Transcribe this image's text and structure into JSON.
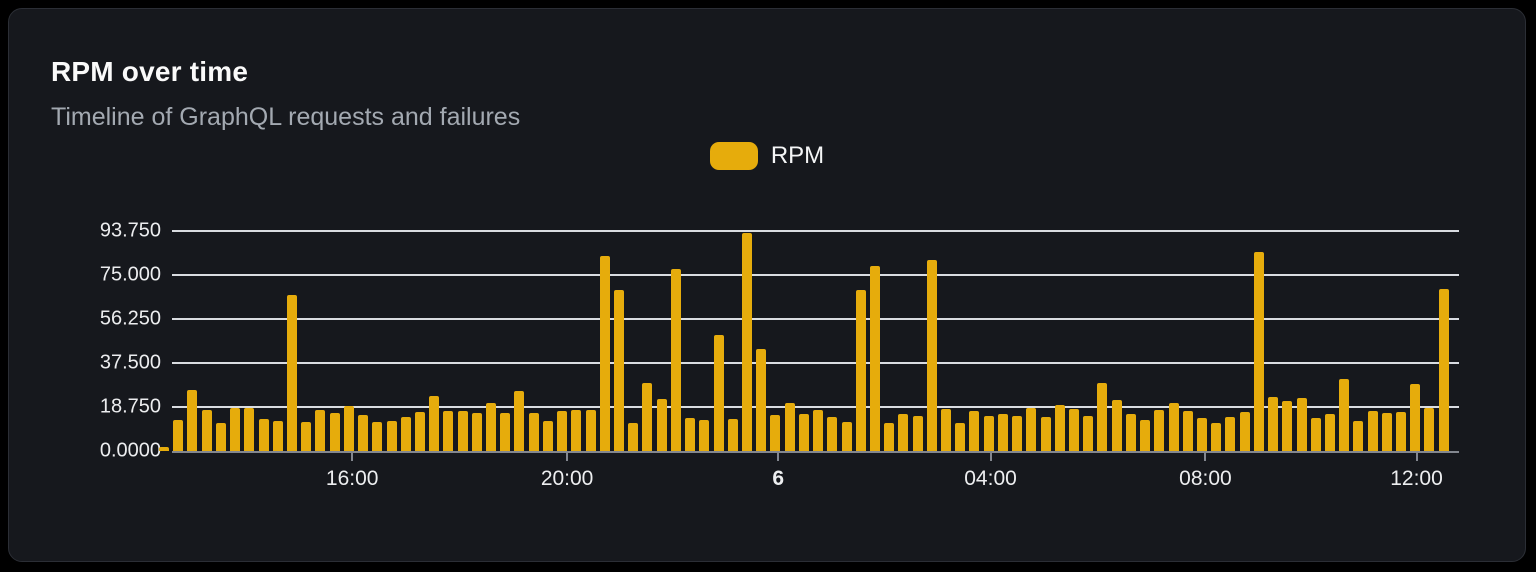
{
  "card": {
    "title": "RPM over time",
    "subtitle": "Timeline of GraphQL requests and failures"
  },
  "legend": {
    "label": "RPM",
    "swatch_color": "#e6ac0c"
  },
  "colors": {
    "page_background": "#000000",
    "card_background": "#16181d",
    "card_border": "#2b2e35",
    "bar": "#e6ac0c",
    "gridline": "#d9dce1",
    "axis_line": "#83878f",
    "title_text": "#fafafa",
    "subtitle_text": "#a3a9b1",
    "tick_text": "#ecedef"
  },
  "chart_data": {
    "type": "bar",
    "title": "RPM over time",
    "subtitle": "Timeline of GraphQL requests and failures",
    "series_name": "RPM",
    "ylabel": "",
    "xlabel": "",
    "ylim": [
      0,
      93.75
    ],
    "grid": true,
    "legend_position": "top-center",
    "bar_color": "#e6ac0c",
    "y_ticks": [
      {
        "label": "93.750",
        "value": 93.75
      },
      {
        "label": "75.000",
        "value": 75.0
      },
      {
        "label": "56.250",
        "value": 56.25
      },
      {
        "label": "37.500",
        "value": 37.5
      },
      {
        "label": "18.750",
        "value": 18.75
      },
      {
        "label": "0.0000",
        "value": 0.0
      }
    ],
    "x_ticks": [
      {
        "label": "16:00",
        "pos": 0.14,
        "bold": false
      },
      {
        "label": "20:00",
        "pos": 0.307,
        "bold": false
      },
      {
        "label": "6",
        "pos": 0.471,
        "bold": true
      },
      {
        "label": "04:00",
        "pos": 0.636,
        "bold": false
      },
      {
        "label": "08:00",
        "pos": 0.803,
        "bold": false
      },
      {
        "label": "12:00",
        "pos": 0.967,
        "bold": false
      }
    ],
    "values": [
      1.5,
      13.2,
      26,
      17.6,
      11.8,
      18.3,
      18.3,
      13.7,
      13,
      66.5,
      12.2,
      17.3,
      16.1,
      19.2,
      15.4,
      12.2,
      13,
      14.4,
      16.6,
      23.5,
      16.9,
      17,
      16.1,
      20.5,
      16.1,
      25.7,
      16.1,
      13,
      17,
      17.3,
      17.3,
      83.3,
      68.8,
      12,
      28.8,
      22,
      77.6,
      14.1,
      13.3,
      49.3,
      13.7,
      92.7,
      43.5,
      15.4,
      20.5,
      15.9,
      17.6,
      14.4,
      12.2,
      68.8,
      78.8,
      12,
      15.9,
      14.8,
      81.5,
      18,
      11.8,
      17,
      15.1,
      15.9,
      14.8,
      18.4,
      14.4,
      19.4,
      17.7,
      15.1,
      28.8,
      21.9,
      15.9,
      13.4,
      17.3,
      20.6,
      17,
      14.1,
      12,
      14.4,
      16.6,
      85,
      23,
      21.2,
      22.8,
      14.1,
      15.9,
      30.5,
      13,
      16.9,
      16.1,
      16.6,
      28.4,
      18.3,
      69.2
    ]
  }
}
